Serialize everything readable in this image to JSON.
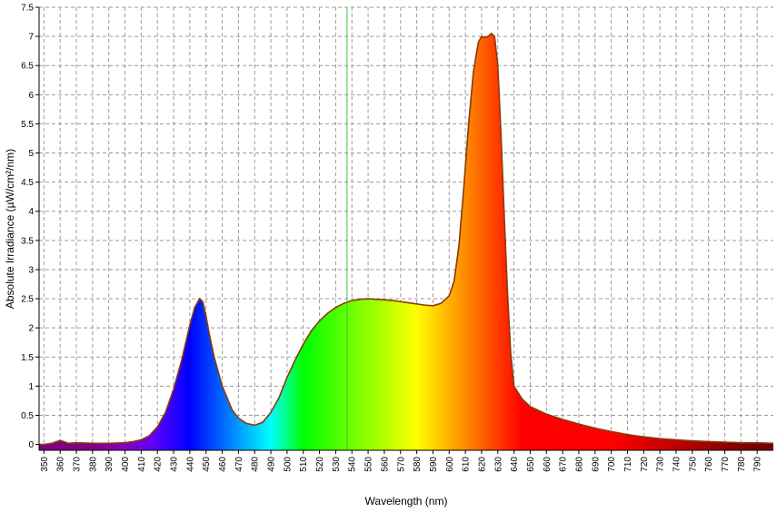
{
  "chart_data": {
    "type": "area",
    "title": "",
    "xlabel": "Wavelength (nm)",
    "ylabel": "Absolute Irradiance (µW/cm²/nm)",
    "xlim": [
      347,
      800
    ],
    "ylim": [
      -0.1,
      7.5
    ],
    "grid": true,
    "x_ticks": [
      350,
      360,
      370,
      380,
      390,
      400,
      410,
      420,
      430,
      440,
      450,
      460,
      470,
      480,
      490,
      500,
      510,
      520,
      530,
      540,
      550,
      560,
      570,
      580,
      590,
      600,
      610,
      620,
      630,
      640,
      650,
      660,
      670,
      680,
      690,
      700,
      710,
      720,
      730,
      740,
      750,
      760,
      770,
      780,
      790
    ],
    "y_ticks": [
      {
        "v": 0,
        "label": "0"
      },
      {
        "v": 0.5,
        "label": "0.5"
      },
      {
        "v": 1,
        "label": "1"
      },
      {
        "v": 1.5,
        "label": "1.5"
      },
      {
        "v": 2,
        "label": "2"
      },
      {
        "v": 2.5,
        "label": "2.5"
      },
      {
        "v": 3,
        "label": "3"
      },
      {
        "v": 3.5,
        "label": "3.5"
      },
      {
        "v": 4,
        "label": "4"
      },
      {
        "v": 4.5,
        "label": "4.5"
      },
      {
        "v": 5,
        "label": "5"
      },
      {
        "v": 5.5,
        "label": "5.5"
      },
      {
        "v": 6,
        "label": "6"
      },
      {
        "v": 6.5,
        "label": "6.5"
      },
      {
        "v": 7,
        "label": "7"
      },
      {
        "v": 7.5,
        "label": "7.5"
      }
    ],
    "cursor_x": 537,
    "series": [
      {
        "x": [
          347,
          350,
          355,
          358,
          360,
          362,
          365,
          370,
          380,
          390,
          400,
          405,
          410,
          415,
          420,
          425,
          430,
          435,
          440,
          443,
          446,
          448,
          450,
          452,
          455,
          458,
          460,
          463,
          466,
          470,
          475,
          480,
          485,
          490,
          495,
          500,
          505,
          510,
          515,
          520,
          525,
          530,
          535,
          540,
          545,
          550,
          555,
          560,
          565,
          570,
          575,
          580,
          585,
          590,
          595,
          600,
          603,
          606,
          609,
          612,
          615,
          618,
          620,
          622,
          624,
          626,
          628,
          630,
          632,
          634,
          636,
          638,
          640,
          645,
          650,
          660,
          670,
          680,
          690,
          700,
          710,
          720,
          730,
          740,
          750,
          760,
          770,
          780,
          790,
          800
        ],
        "y": [
          0.0,
          0.0,
          0.02,
          0.05,
          0.07,
          0.05,
          0.02,
          0.03,
          0.02,
          0.02,
          0.03,
          0.05,
          0.08,
          0.15,
          0.3,
          0.55,
          0.95,
          1.45,
          2.05,
          2.35,
          2.5,
          2.45,
          2.2,
          1.9,
          1.5,
          1.2,
          1.0,
          0.8,
          0.6,
          0.45,
          0.36,
          0.33,
          0.38,
          0.55,
          0.8,
          1.15,
          1.45,
          1.72,
          1.95,
          2.12,
          2.25,
          2.35,
          2.42,
          2.47,
          2.49,
          2.5,
          2.49,
          2.48,
          2.47,
          2.45,
          2.43,
          2.41,
          2.39,
          2.38,
          2.42,
          2.55,
          2.8,
          3.4,
          4.4,
          5.5,
          6.4,
          6.9,
          7.0,
          6.98,
          7.0,
          7.05,
          7.0,
          6.5,
          5.3,
          3.9,
          2.6,
          1.55,
          1.0,
          0.78,
          0.65,
          0.52,
          0.43,
          0.35,
          0.28,
          0.22,
          0.17,
          0.13,
          0.1,
          0.08,
          0.06,
          0.05,
          0.04,
          0.03,
          0.03,
          0.02
        ]
      }
    ]
  }
}
